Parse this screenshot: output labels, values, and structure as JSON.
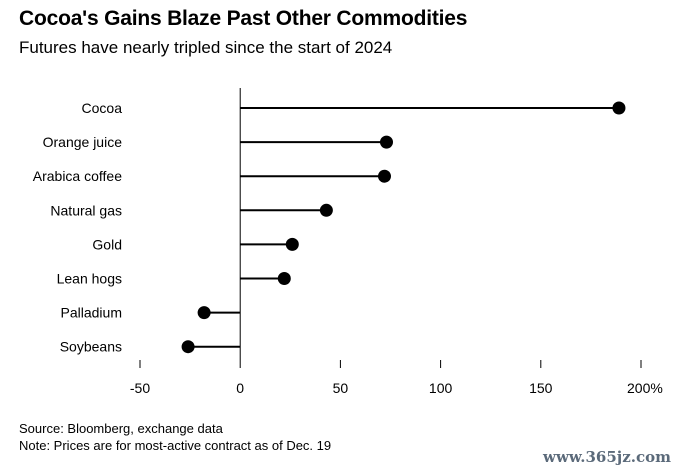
{
  "header": {
    "title": "Cocoa's Gains Blaze Past Other Commodities",
    "subtitle": "Futures have nearly tripled since the start of 2024"
  },
  "footer": {
    "source": "Source: Bloomberg, exchange data",
    "note": "Note: Prices are for most-active contract as of Dec. 19"
  },
  "watermark": "www.365jz.com",
  "chart_data": {
    "type": "lollipop",
    "orientation": "horizontal",
    "title": "Cocoa's Gains Blaze Past Other Commodities",
    "subtitle": "Futures have nearly tripled since the start of 2024",
    "categories": [
      "Cocoa",
      "Orange juice",
      "Arabica coffee",
      "Natural gas",
      "Gold",
      "Lean hogs",
      "Palladium",
      "Soybeans"
    ],
    "values": [
      189,
      73,
      72,
      43,
      26,
      22,
      -18,
      -26
    ],
    "xlim": [
      -50,
      200
    ],
    "xticks": [
      -50,
      0,
      50,
      100,
      150,
      200
    ],
    "xtick_labels": [
      "-50",
      "0",
      "50",
      "100",
      "150",
      "200%"
    ],
    "unit": "%",
    "grid": false,
    "legend": "none",
    "colors": {
      "marker": "#000000",
      "stem": "#000000",
      "axis": "#000000"
    }
  }
}
